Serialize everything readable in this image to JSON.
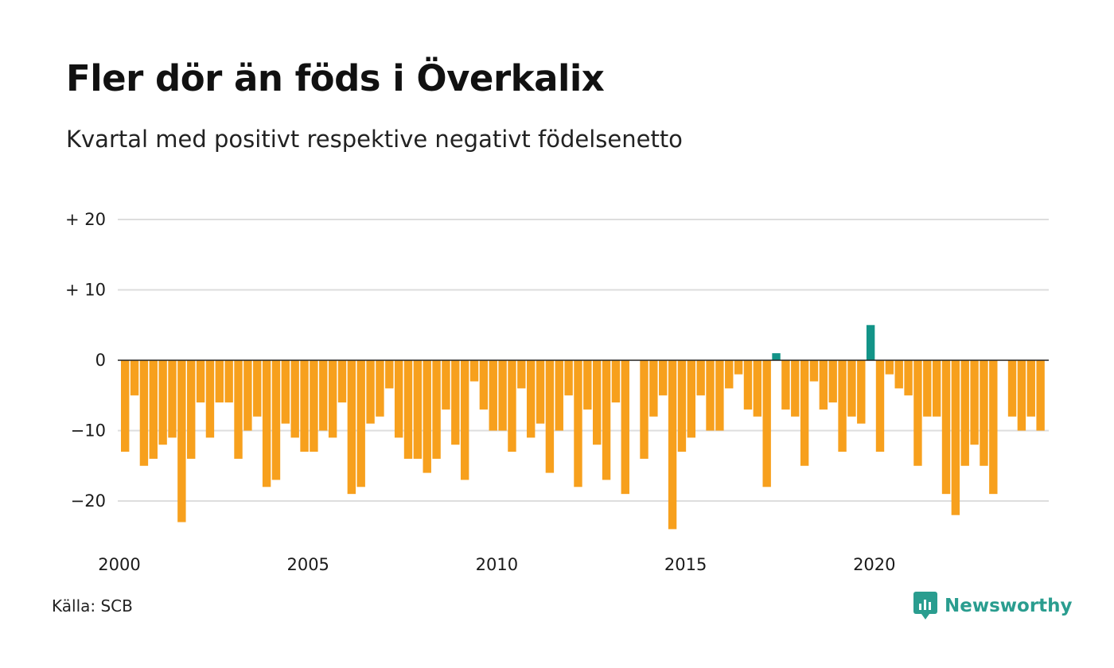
{
  "title": "Fler dör än föds i Överkalix",
  "subtitle": "Kvartal med positivt respektive negativt födelsenetto",
  "source": "Källa: SCB",
  "brand": "Newsworthy",
  "colors": {
    "negative": "#f7a01d",
    "positive": "#139488",
    "grid": "#dddddd",
    "zero_line": "#222222",
    "brand": "#2a9d8f"
  },
  "chart_data": {
    "type": "bar",
    "x_start": "2000-Q1",
    "ylim": [
      -25,
      22
    ],
    "y_ticks": [
      20,
      10,
      0,
      -10,
      -20
    ],
    "y_tick_labels": [
      "+ 20",
      "+ 10",
      "0",
      "−10",
      "−20"
    ],
    "x_tick_labels": [
      "2000",
      "2005",
      "2010",
      "2015",
      "2020"
    ],
    "grid": true,
    "values": [
      -13,
      -5,
      -15,
      -14,
      -12,
      -11,
      -23,
      -14,
      -6,
      -11,
      -6,
      -6,
      -14,
      -10,
      -8,
      -18,
      -17,
      -9,
      -11,
      -13,
      -13,
      -10,
      -11,
      -6,
      -19,
      -18,
      -9,
      -8,
      -4,
      -11,
      -14,
      -14,
      -16,
      -14,
      -7,
      -12,
      -17,
      -3,
      -7,
      -10,
      -10,
      -13,
      -4,
      -11,
      -9,
      -16,
      -10,
      -5,
      -18,
      -7,
      -12,
      -17,
      -6,
      -19,
      0,
      -14,
      -8,
      -5,
      -24,
      -13,
      -11,
      -5,
      -10,
      -10,
      -4,
      -2,
      -7,
      -8,
      -18,
      1,
      -7,
      -8,
      -15,
      -3,
      -7,
      -6,
      -13,
      -8,
      -9,
      5,
      -13,
      -2,
      -4,
      -5,
      -15,
      -8,
      -8,
      -19,
      -22,
      -15,
      -12,
      -15,
      -19,
      0,
      -8,
      -10,
      -8,
      -10
    ]
  }
}
